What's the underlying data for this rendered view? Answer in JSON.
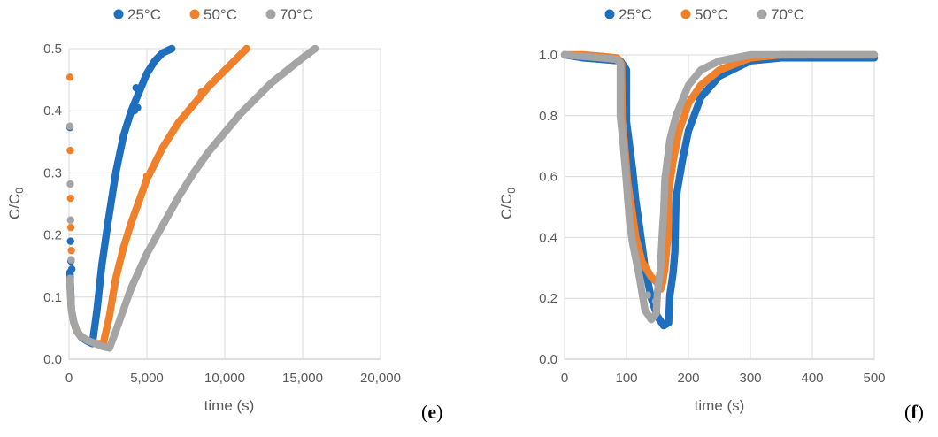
{
  "colors": {
    "s25": "#1f6fbf",
    "s50": "#f0812c",
    "s70": "#a5a5a5"
  },
  "chart_data": [
    {
      "type": "scatter",
      "panel": "e",
      "xlabel": "time (s)",
      "ylabel": "C/C0",
      "ylabel_main": "C/C",
      "ylabel_sub": "0",
      "xlim": [
        0,
        20000
      ],
      "ylim": [
        0,
        0.5
      ],
      "xticks": [
        0,
        5000,
        10000,
        15000,
        20000
      ],
      "xtick_labels": [
        "0",
        "5,000",
        "10,000",
        "15,000",
        "20,000"
      ],
      "yticks": [
        0,
        0.1,
        0.2,
        0.3,
        0.4,
        0.5
      ],
      "ytick_labels": [
        "0.0",
        "0.1",
        "0.2",
        "0.3",
        "0.4",
        "0.5"
      ],
      "legend_position": "top",
      "grid": true,
      "series": [
        {
          "name": "25°C",
          "color_key": "s25",
          "curve": [
            [
              60,
              0.14
            ],
            [
              150,
              0.08
            ],
            [
              300,
              0.06
            ],
            [
              500,
              0.045
            ],
            [
              800,
              0.035
            ],
            [
              1100,
              0.03
            ],
            [
              1500,
              0.025
            ],
            [
              1800,
              0.08
            ],
            [
              2100,
              0.15
            ],
            [
              2500,
              0.22
            ],
            [
              3000,
              0.3
            ],
            [
              3500,
              0.36
            ],
            [
              4000,
              0.4
            ],
            [
              4500,
              0.43
            ],
            [
              5000,
              0.46
            ],
            [
              5500,
              0.48
            ],
            [
              6000,
              0.493
            ],
            [
              6600,
              0.5
            ]
          ],
          "outliers": [
            [
              60,
              0.373
            ],
            [
              100,
              0.19
            ],
            [
              120,
              0.158
            ],
            [
              180,
              0.145
            ],
            [
              4300,
              0.437
            ],
            [
              4400,
              0.405
            ],
            [
              4200,
              0.4
            ]
          ]
        },
        {
          "name": "50°C",
          "color_key": "s50",
          "curve": [
            [
              60,
              0.12
            ],
            [
              150,
              0.08
            ],
            [
              300,
              0.06
            ],
            [
              500,
              0.045
            ],
            [
              800,
              0.036
            ],
            [
              1200,
              0.03
            ],
            [
              1700,
              0.025
            ],
            [
              2200,
              0.025
            ],
            [
              2600,
              0.07
            ],
            [
              3000,
              0.13
            ],
            [
              3500,
              0.18
            ],
            [
              4000,
              0.22
            ],
            [
              5000,
              0.29
            ],
            [
              6000,
              0.34
            ],
            [
              7000,
              0.38
            ],
            [
              8000,
              0.41
            ],
            [
              9000,
              0.44
            ],
            [
              10000,
              0.465
            ],
            [
              11000,
              0.49
            ],
            [
              11400,
              0.5
            ]
          ],
          "outliers": [
            [
              60,
              0.454
            ],
            [
              80,
              0.336
            ],
            [
              100,
              0.259
            ],
            [
              120,
              0.212
            ],
            [
              150,
              0.175
            ],
            [
              4000,
              0.22
            ],
            [
              5000,
              0.295
            ],
            [
              8500,
              0.43
            ]
          ]
        },
        {
          "name": "70°C",
          "color_key": "s70",
          "curve": [
            [
              60,
              0.13
            ],
            [
              150,
              0.08
            ],
            [
              300,
              0.06
            ],
            [
              500,
              0.045
            ],
            [
              800,
              0.036
            ],
            [
              1200,
              0.03
            ],
            [
              1700,
              0.025
            ],
            [
              2200,
              0.02
            ],
            [
              2600,
              0.018
            ],
            [
              3000,
              0.045
            ],
            [
              3500,
              0.08
            ],
            [
              4000,
              0.115
            ],
            [
              5000,
              0.17
            ],
            [
              6000,
              0.215
            ],
            [
              7000,
              0.26
            ],
            [
              8000,
              0.3
            ],
            [
              9000,
              0.335
            ],
            [
              10000,
              0.365
            ],
            [
              11000,
              0.395
            ],
            [
              12000,
              0.42
            ],
            [
              13000,
              0.445
            ],
            [
              14000,
              0.465
            ],
            [
              15000,
              0.485
            ],
            [
              15800,
              0.5
            ]
          ],
          "outliers": [
            [
              60,
              0.375
            ],
            [
              80,
              0.282
            ],
            [
              100,
              0.224
            ],
            [
              140,
              0.16
            ]
          ]
        }
      ]
    },
    {
      "type": "scatter",
      "panel": "f",
      "xlabel": "time (s)",
      "ylabel": "C/C0",
      "ylabel_main": "C/C",
      "ylabel_sub": "0",
      "xlim": [
        0,
        500
      ],
      "ylim": [
        0,
        1.0
      ],
      "xticks": [
        0,
        100,
        200,
        300,
        400,
        500
      ],
      "xtick_labels": [
        "0",
        "100",
        "200",
        "300",
        "400",
        "500"
      ],
      "yticks": [
        0,
        0.2,
        0.4,
        0.6,
        0.8,
        1.0
      ],
      "ytick_labels": [
        "0.0",
        "0.2",
        "0.4",
        "0.6",
        "0.8",
        "1.0"
      ],
      "legend_position": "top",
      "grid": true,
      "series": [
        {
          "name": "25°C",
          "color_key": "s25",
          "curve": [
            [
              0,
              1.0
            ],
            [
              30,
              0.99
            ],
            [
              60,
              0.985
            ],
            [
              90,
              0.98
            ],
            [
              97,
              0.96
            ],
            [
              100,
              0.95
            ],
            [
              100,
              0.78
            ],
            [
              105,
              0.7
            ],
            [
              110,
              0.62
            ],
            [
              115,
              0.52
            ],
            [
              120,
              0.45
            ],
            [
              130,
              0.3
            ],
            [
              140,
              0.2
            ],
            [
              150,
              0.14
            ],
            [
              160,
              0.11
            ],
            [
              168,
              0.12
            ],
            [
              170,
              0.21
            ],
            [
              175,
              0.28
            ],
            [
              178,
              0.35
            ],
            [
              180,
              0.53
            ],
            [
              190,
              0.65
            ],
            [
              200,
              0.75
            ],
            [
              220,
              0.86
            ],
            [
              250,
              0.93
            ],
            [
              300,
              0.98
            ],
            [
              350,
              0.99
            ],
            [
              400,
              0.99
            ],
            [
              450,
              0.99
            ],
            [
              500,
              0.99
            ]
          ],
          "outliers": []
        },
        {
          "name": "50°C",
          "color_key": "s50",
          "curve": [
            [
              0,
              1.0
            ],
            [
              30,
              1.0
            ],
            [
              60,
              0.995
            ],
            [
              85,
              0.99
            ],
            [
              92,
              0.97
            ],
            [
              93,
              0.79
            ],
            [
              97,
              0.7
            ],
            [
              102,
              0.58
            ],
            [
              108,
              0.5
            ],
            [
              115,
              0.4
            ],
            [
              125,
              0.32
            ],
            [
              140,
              0.27
            ],
            [
              150,
              0.25
            ],
            [
              155,
              0.23
            ],
            [
              158,
              0.25
            ],
            [
              162,
              0.3
            ],
            [
              165,
              0.37
            ],
            [
              167,
              0.4
            ],
            [
              168,
              0.55
            ],
            [
              175,
              0.65
            ],
            [
              185,
              0.75
            ],
            [
              200,
              0.84
            ],
            [
              220,
              0.9
            ],
            [
              250,
              0.95
            ],
            [
              300,
              0.99
            ],
            [
              350,
              1.0
            ],
            [
              400,
              1.0
            ],
            [
              450,
              1.0
            ],
            [
              500,
              1.0
            ]
          ],
          "outliers": []
        },
        {
          "name": "70°C",
          "color_key": "s70",
          "curve": [
            [
              0,
              1.0
            ],
            [
              30,
              0.995
            ],
            [
              60,
              0.99
            ],
            [
              85,
              0.985
            ],
            [
              90,
              0.97
            ],
            [
              90,
              0.8
            ],
            [
              95,
              0.7
            ],
            [
              100,
              0.58
            ],
            [
              105,
              0.45
            ],
            [
              110,
              0.38
            ],
            [
              115,
              0.33
            ],
            [
              120,
              0.28
            ],
            [
              125,
              0.22
            ],
            [
              130,
              0.16
            ],
            [
              140,
              0.13
            ],
            [
              148,
              0.15
            ],
            [
              150,
              0.22
            ],
            [
              155,
              0.3
            ],
            [
              158,
              0.42
            ],
            [
              160,
              0.48
            ],
            [
              162,
              0.59
            ],
            [
              170,
              0.72
            ],
            [
              180,
              0.8
            ],
            [
              200,
              0.9
            ],
            [
              220,
              0.95
            ],
            [
              250,
              0.98
            ],
            [
              300,
              1.0
            ],
            [
              350,
              1.0
            ],
            [
              400,
              1.0
            ],
            [
              450,
              1.0
            ],
            [
              500,
              1.0
            ]
          ],
          "outliers": [
            [
              134,
              0.21
            ],
            [
              147,
              0.19
            ]
          ]
        }
      ]
    }
  ],
  "panel_labels": {
    "e": "e",
    "f": "f"
  }
}
